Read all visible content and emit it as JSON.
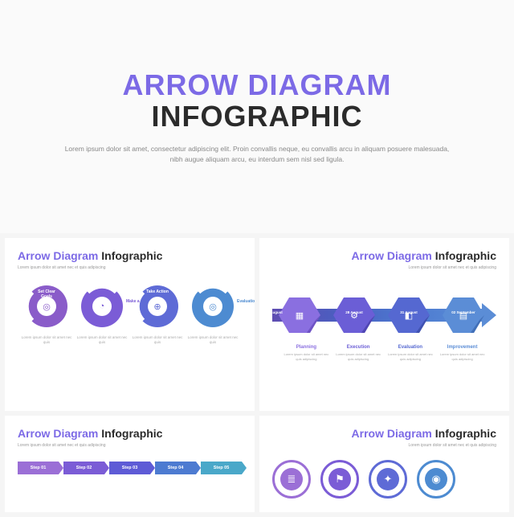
{
  "hero": {
    "title_line1": "ARROW DIAGRAM",
    "title_line2": "INFOGRAPHIC",
    "subtitle": "Lorem ipsum dolor sit amet, consectetur adipiscing elit. Proin convallis neque, eu convallis arcu in aliquam posuere malesuada, nibh augue aliquam arcu, eu interdum sem nisl sed ligula.",
    "title_line1_color": "#7c6ae6",
    "title_line2_color": "#2b2b2b",
    "title_fontsize": 36,
    "background": "#fafafa"
  },
  "colors": {
    "purple": "#7b5cd6",
    "violet": "#8a6fe0",
    "indigo": "#5e5bd6",
    "blue": "#4d7bd1",
    "lightblue": "#5b9bd5",
    "teal": "#4aa8c9"
  },
  "slideA": {
    "title_accent": "Arrow Diagram",
    "title_dark": " Infographic",
    "subtitle": "Lorem ipsum dolor sit amet nec et quis adipiscing",
    "loops": [
      {
        "label": "Set Clear Goals",
        "side": "",
        "color": "#8a5cc9",
        "icon": "◎",
        "desc": "Lorem ipsum dolor sit amet nec quis"
      },
      {
        "label": "",
        "side": "Make a Plan",
        "side_pos": "right",
        "color": "#7b5cd6",
        "icon": "◔",
        "desc": "Lorem ipsum dolor sit amet nec quis"
      },
      {
        "label": "Take Action",
        "side": "",
        "color": "#5e6bd6",
        "icon": "⊕",
        "desc": "Lorem ipsum dolor sit amet nec quis"
      },
      {
        "label": "",
        "side": "Evaluation",
        "side_pos": "right",
        "color": "#4d8bd1",
        "icon": "◎",
        "desc": "Lorem ipsum dolor sit amet nec quis"
      }
    ]
  },
  "slideB": {
    "title_accent": "Arrow Diagram",
    "title_dark": " Infographic",
    "subtitle": "Lorem ipsum dolor sit amet nec et quis adipiscing",
    "hex": [
      {
        "date": "25 August",
        "color_top": "#8a6fe0",
        "color_side": "#6b50c2",
        "icon": "▦"
      },
      {
        "date": "28 August",
        "color_top": "#6b5ed6",
        "color_side": "#4e44b0",
        "icon": "⚙"
      },
      {
        "date": "31 August",
        "color_top": "#5568d1",
        "color_side": "#3e50ad",
        "icon": "◧"
      },
      {
        "date": "02 September",
        "color_top": "#5b8dd6",
        "color_side": "#3f6db5",
        "icon": "▤"
      }
    ],
    "phases": [
      {
        "title": "Planning",
        "color": "#8a6fe0",
        "desc": "Lorem ipsum dolor sit amet nec quis adipiscing"
      },
      {
        "title": "Execution",
        "color": "#6b5ed6",
        "desc": "Lorem ipsum dolor sit amet nec quis adipiscing"
      },
      {
        "title": "Evaluation",
        "color": "#5568d1",
        "desc": "Lorem ipsum dolor sit amet nec quis adipiscing"
      },
      {
        "title": "Improvement",
        "color": "#5b8dd6",
        "desc": "Lorem ipsum dolor sit amet nec quis adipiscing"
      }
    ]
  },
  "slideC": {
    "title_accent": "Arrow Diagram",
    "title_dark": " Infographic",
    "subtitle": "Lorem ipsum dolor sit amet nec et quis adipiscing",
    "steps": [
      {
        "label": "Step 01",
        "color": "#9b6fd6"
      },
      {
        "label": "Step 02",
        "color": "#7b5cd6"
      },
      {
        "label": "Step 03",
        "color": "#5e5bd6"
      },
      {
        "label": "Step 04",
        "color": "#4d7bd1"
      },
      {
        "label": "Step 05",
        "color": "#4aa8c9"
      }
    ]
  },
  "slideD": {
    "title_accent": "Arrow Diagram",
    "title_dark": " Infographic",
    "subtitle": "Lorem ipsum dolor sit amet nec et quis adipiscing",
    "circles": [
      {
        "border": "#9b6fd6",
        "fill": "#9b6fd6",
        "icon": "≣"
      },
      {
        "border": "#7b5cd6",
        "fill": "#7b5cd6",
        "icon": "⚑"
      },
      {
        "border": "#5e6bd6",
        "fill": "#5e6bd6",
        "icon": "✦"
      },
      {
        "border": "#4d8bd1",
        "fill": "#4d8bd1",
        "icon": "◉"
      }
    ]
  }
}
